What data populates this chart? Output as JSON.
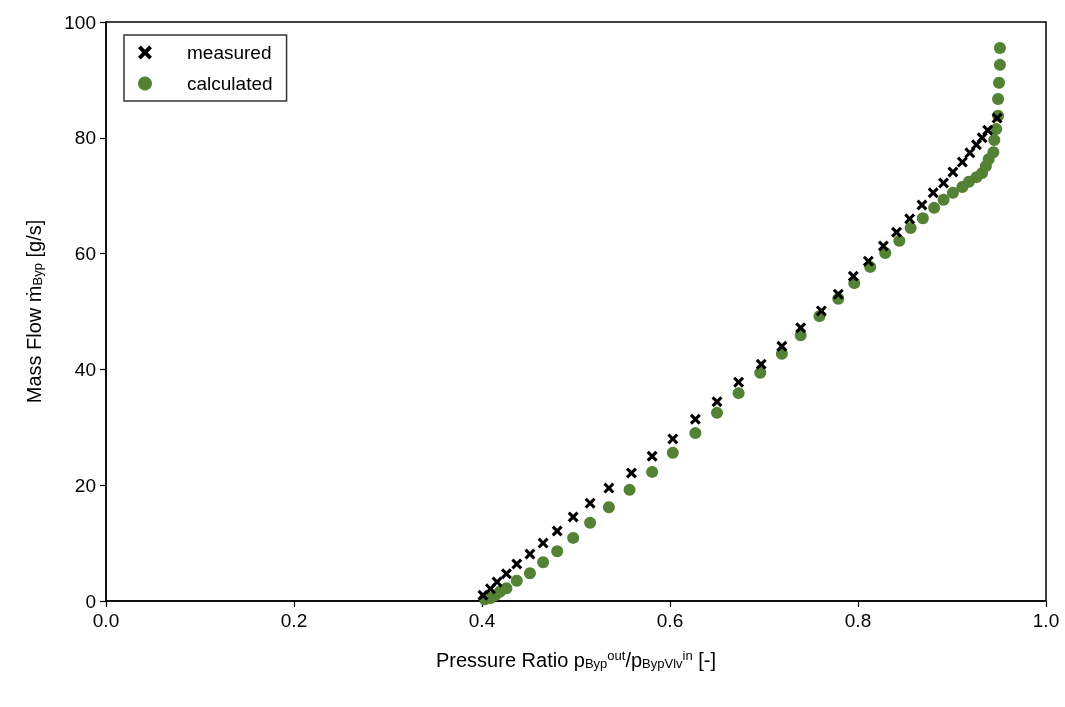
{
  "chart_data": {
    "type": "scatter",
    "xlabel": "Pressure Ratio p$_{Byp}$$^{out}$/p$_{BypVlv}$$^{in}$ [-]",
    "ylabel": "Mass Flow ṁ$_{Byp}$ [g/s]",
    "xlim": [
      0,
      1
    ],
    "xticks": [
      {
        "value": 0,
        "label": "0.0"
      },
      {
        "value": 0.2,
        "label": "0.2"
      },
      {
        "value": 0.4,
        "label": "0.4"
      },
      {
        "value": 0.6,
        "label": "0.6"
      },
      {
        "value": 0.8,
        "label": "0.8"
      },
      {
        "value": 1,
        "label": "1.0"
      }
    ],
    "ylim": [
      0,
      100
    ],
    "yticks": [
      0,
      20,
      40,
      60,
      80,
      100
    ],
    "grid": false,
    "legend": "top left",
    "series": [
      {
        "name": "measured",
        "color": "#000000",
        "marker": "cross",
        "x": [
          0.401,
          0.409,
          0.416,
          0.426,
          0.437,
          0.451,
          0.465,
          0.48,
          0.497,
          0.515,
          0.535,
          0.559,
          0.581,
          0.603,
          0.627,
          0.65,
          0.673,
          0.697,
          0.719,
          0.739,
          0.761,
          0.779,
          0.795,
          0.811,
          0.827,
          0.841,
          0.855,
          0.868,
          0.88,
          0.891,
          0.901,
          0.911,
          0.919,
          0.926,
          0.932,
          0.938,
          0.948
        ],
        "values": [
          1.0,
          2.1,
          3.3,
          4.7,
          6.4,
          8.1,
          10.0,
          12.1,
          14.5,
          16.9,
          19.5,
          22.1,
          25.0,
          28.0,
          31.4,
          34.4,
          37.8,
          40.9,
          44.0,
          47.2,
          50.1,
          53.0,
          56.1,
          58.7,
          61.3,
          63.7,
          66.0,
          68.4,
          70.5,
          72.2,
          74.1,
          75.8,
          77.4,
          78.8,
          80.0,
          81.3,
          83.4
        ]
      },
      {
        "name": "calculated",
        "color": "#548235",
        "marker": "circle",
        "x": [
          0.403,
          0.409,
          0.414,
          0.419,
          0.426,
          0.437,
          0.451,
          0.465,
          0.48,
          0.497,
          0.515,
          0.535,
          0.557,
          0.581,
          0.603,
          0.627,
          0.65,
          0.673,
          0.696,
          0.719,
          0.739,
          0.759,
          0.779,
          0.796,
          0.813,
          0.829,
          0.844,
          0.856,
          0.869,
          0.881,
          0.891,
          0.901,
          0.911,
          0.918,
          0.926,
          0.932,
          0.936,
          0.939,
          0.944,
          0.945,
          0.947,
          0.949,
          0.949,
          0.95,
          0.951,
          0.951
        ],
        "values": [
          0.3,
          0.5,
          1.0,
          1.6,
          2.2,
          3.5,
          4.8,
          6.7,
          8.6,
          10.9,
          13.5,
          16.2,
          19.2,
          22.3,
          25.6,
          29.0,
          32.5,
          35.9,
          39.4,
          42.7,
          45.9,
          49.2,
          52.2,
          54.9,
          57.7,
          60.1,
          62.2,
          64.4,
          66.1,
          67.9,
          69.3,
          70.5,
          71.5,
          72.4,
          73.2,
          73.9,
          75.1,
          76.3,
          77.5,
          79.6,
          81.5,
          83.8,
          86.7,
          89.5,
          92.6,
          95.5
        ]
      }
    ]
  }
}
